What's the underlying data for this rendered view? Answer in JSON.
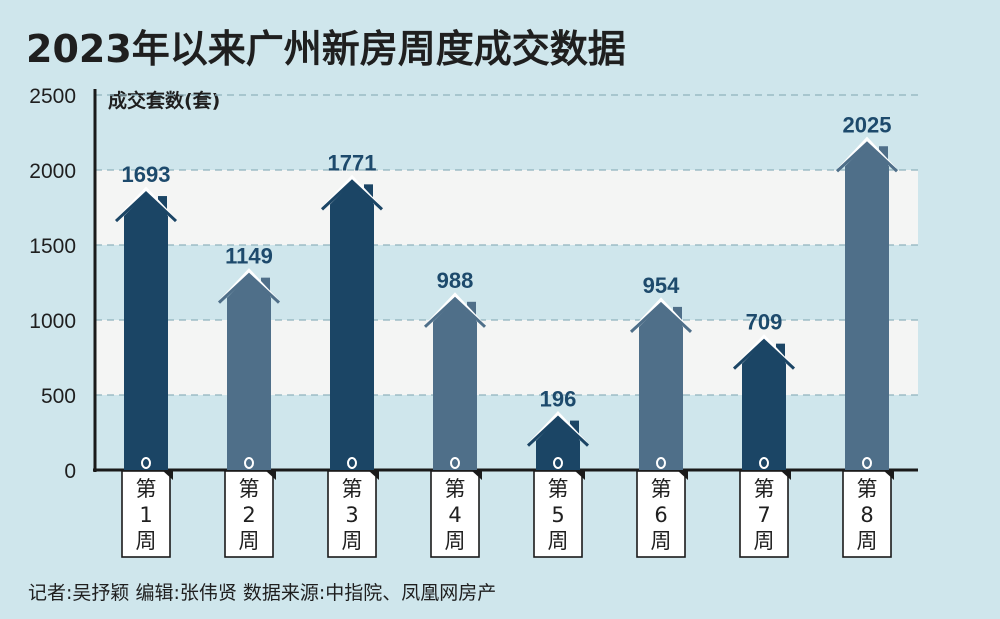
{
  "title": "2023年以来广州新房周度成交数据",
  "footer": "记者:吴抒颖  编辑:张伟贤  数据来源:中指院、凤凰网房产",
  "colors": {
    "background": "#cfe6ec",
    "band": "#f4f5f4",
    "dark": "#1b4565",
    "light": "#4f6f89",
    "label": "#1d4a6c"
  },
  "chart_data": {
    "type": "bar",
    "ylabel": "成交套数(套)",
    "xlabel": "",
    "ylim": [
      0,
      2500
    ],
    "yticks": [
      0,
      500,
      1000,
      1500,
      2000,
      2500
    ],
    "grid": true,
    "categories": [
      "第1周",
      "第2周",
      "第3周",
      "第4周",
      "第5周",
      "第6周",
      "第7周",
      "第8周"
    ],
    "values": [
      1693,
      1149,
      1771,
      988,
      196,
      954,
      709,
      2025
    ],
    "bar_tone": [
      "dark",
      "light",
      "dark",
      "light",
      "dark",
      "light",
      "dark",
      "light"
    ]
  }
}
